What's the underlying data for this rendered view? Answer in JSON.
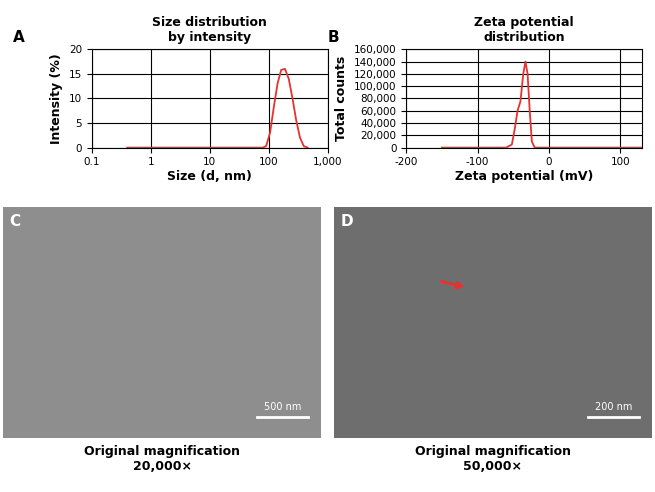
{
  "chart_data": [
    {
      "type": "line",
      "panel": "A",
      "title": "Size distribution\nby intensity",
      "x_label": "Size (d, nm)",
      "y_label": "Intensity (%)",
      "log": "x",
      "grid": true,
      "x": [
        0.4,
        80,
        91,
        106,
        122,
        142,
        164,
        190,
        220,
        255,
        295,
        342,
        396,
        459
      ],
      "values": [
        0,
        0,
        0.3,
        3,
        8,
        13,
        15.8,
        16,
        14,
        10,
        5.5,
        2,
        0.3,
        0
      ],
      "color": "#e8312f",
      "xlim": [
        0.1,
        1000
      ],
      "xticks": [
        0.1,
        1,
        10,
        100,
        {
          "value": 1000,
          "label": "1,000"
        }
      ],
      "ylim": [
        0,
        20
      ],
      "yticks": [
        0,
        5,
        10,
        15,
        20
      ]
    },
    {
      "type": "line",
      "panel": "B",
      "title": "Zeta potential\ndistribution",
      "x_label": "Zeta potential (mV)",
      "y_label": "Total counts",
      "grid": true,
      "x": [
        -150,
        -60,
        -52,
        -48,
        -44,
        -40,
        -36,
        -33,
        -30,
        -27,
        -24,
        -20,
        130
      ],
      "values": [
        0,
        0,
        5000,
        30000,
        60000,
        75000,
        120000,
        140000,
        120000,
        60000,
        10000,
        0,
        0
      ],
      "color": "#e8312f",
      "xlim": [
        -200,
        130
      ],
      "xticks": [
        -200,
        -100,
        0,
        100
      ],
      "ylim": [
        0,
        160000
      ],
      "yticks": [
        0,
        {
          "value": 20000,
          "label": "20,000"
        },
        {
          "value": 40000,
          "label": "40,000"
        },
        {
          "value": 60000,
          "label": "60,000"
        },
        {
          "value": 80000,
          "label": "80,000"
        },
        {
          "value": 100000,
          "label": "100,000"
        },
        {
          "value": 120000,
          "label": "120,000"
        },
        {
          "value": 140000,
          "label": "140,000"
        },
        {
          "value": 160000,
          "label": "160,000"
        }
      ]
    }
  ],
  "images": [
    {
      "panel": "C",
      "scale_bar": "500 nm",
      "caption": "Original magnification\n20,000×"
    },
    {
      "panel": "D",
      "scale_bar": "200 nm",
      "caption": "Original magnification\n50,000×"
    }
  ]
}
